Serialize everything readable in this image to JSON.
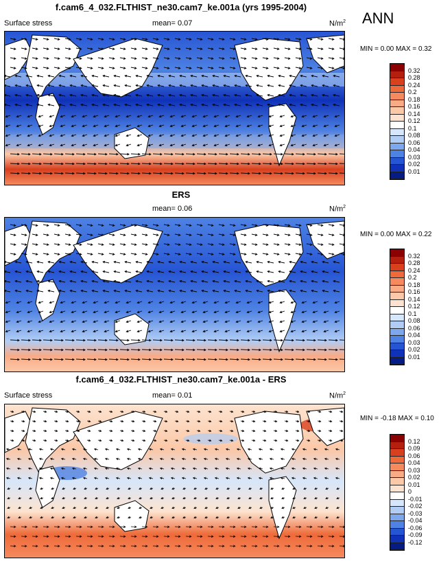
{
  "season": "ANN",
  "colorbars": {
    "abs": {
      "labels": [
        "0.32",
        "0.28",
        "0.24",
        "0.2",
        "0.18",
        "0.16",
        "0.14",
        "0.12",
        "0.1",
        "0.08",
        "0.06",
        "0.04",
        "0.03",
        "0.02",
        "0.01"
      ],
      "colors": [
        "#8b0000",
        "#b5200e",
        "#d8401e",
        "#ee6a3a",
        "#f58a5e",
        "#f9ab86",
        "#fbc8a8",
        "#fde3cf",
        "#ffffff",
        "#d6e6fb",
        "#b1cdf5",
        "#7ea8ee",
        "#4e82e3",
        "#2655d4",
        "#0f32b8",
        "#061c85"
      ]
    },
    "diff": {
      "labels": [
        "0.12",
        "0.09",
        "0.06",
        "0.04",
        "0.03",
        "0.02",
        "0.01",
        "0",
        "-0.01",
        "-0.02",
        "-0.03",
        "-0.04",
        "-0.06",
        "-0.09",
        "-0.12"
      ],
      "colors": [
        "#8b0000",
        "#b5200e",
        "#d8401e",
        "#ee6a3a",
        "#f58a5e",
        "#f9ab86",
        "#fbc8a8",
        "#fde3cf",
        "#ffffff",
        "#d6e6fb",
        "#b1cdf5",
        "#7ea8ee",
        "#4e82e3",
        "#2655d4",
        "#0f32b8",
        "#061c85"
      ]
    }
  },
  "panels": [
    {
      "title": "f.cam6_4_032.FLTHIST_ne30.cam7_ke.001a (yrs 1995-2004)",
      "left_label": "Surface stress",
      "mean_label": "mean=  0.07",
      "units": "N/m",
      "units_sup": "2",
      "min_max": "MIN =  0.00 MAX =  0.32",
      "colorbar": "abs"
    },
    {
      "title": "ERS",
      "left_label": "",
      "mean_label": "mean=  0.06",
      "units": "N/m",
      "units_sup": "2",
      "min_max": "MIN =  0.00 MAX =  0.22",
      "colorbar": "abs"
    },
    {
      "title": "f.cam6_4_032.FLTHIST_ne30.cam7_ke.001a - ERS",
      "left_label": "Surface stress",
      "mean_label": "mean=  0.01",
      "units": "N/m",
      "units_sup": "2",
      "min_max": "MIN = -0.18 MAX =  0.10",
      "colorbar": "diff"
    }
  ]
}
